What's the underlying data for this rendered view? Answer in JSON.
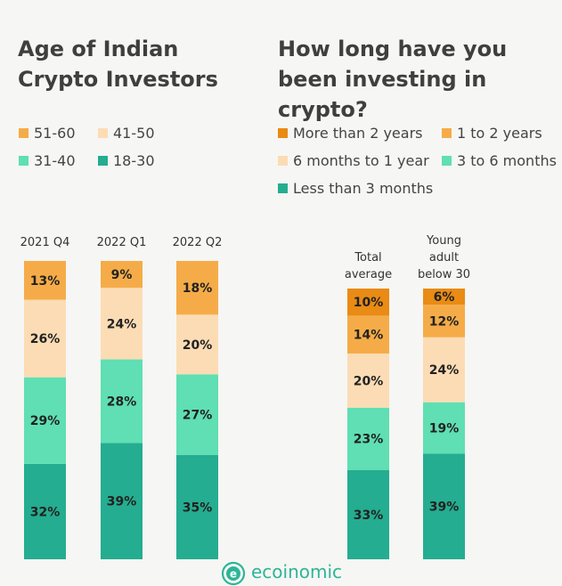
{
  "colors": {
    "dark_orange": "#e98b14",
    "orange": "#f5ac48",
    "peach": "#fcdcb4",
    "mint": "#5fdfb3",
    "teal": "#24ad90"
  },
  "footer": {
    "brand": "ecoinomic",
    "logo_icon": "ecoinomic-logo-icon"
  },
  "chart_data": [
    {
      "type": "bar",
      "stacked": true,
      "title": "Age of Indian Crypto Investors",
      "categories": [
        "2021 Q4",
        "2022 Q1",
        "2022 Q2"
      ],
      "series": [
        {
          "name": "18-30",
          "color": "#24ad90",
          "values": [
            32,
            39,
            35
          ]
        },
        {
          "name": "31-40",
          "color": "#5fdfb3",
          "values": [
            29,
            28,
            27
          ]
        },
        {
          "name": "41-50",
          "color": "#fcdcb4",
          "values": [
            26,
            24,
            20
          ]
        },
        {
          "name": "51-60",
          "color": "#f5ac48",
          "values": [
            13,
            9,
            18
          ]
        }
      ],
      "legend_order": [
        "51-60",
        "41-50",
        "31-40",
        "18-30"
      ],
      "ylim": [
        0,
        100
      ],
      "unit": "%"
    },
    {
      "type": "bar",
      "stacked": true,
      "title": "How long have you been investing in crypto?",
      "categories": [
        "Total average",
        "Young adult below 30"
      ],
      "series": [
        {
          "name": "Less than 3 months",
          "color": "#24ad90",
          "values": [
            33,
            39
          ]
        },
        {
          "name": "3 to 6 months",
          "color": "#5fdfb3",
          "values": [
            23,
            19
          ]
        },
        {
          "name": "6 months to 1 year",
          "color": "#fcdcb4",
          "values": [
            20,
            24
          ]
        },
        {
          "name": "1 to 2 years",
          "color": "#f5ac48",
          "values": [
            14,
            12
          ]
        },
        {
          "name": "More than 2 years",
          "color": "#e98b14",
          "values": [
            10,
            6
          ]
        }
      ],
      "legend_order": [
        "More than 2 years",
        "1 to 2 years",
        "6 months to 1 year",
        "3 to 6 months",
        "Less than 3 months"
      ],
      "ylim": [
        0,
        100
      ],
      "unit": "%"
    }
  ]
}
